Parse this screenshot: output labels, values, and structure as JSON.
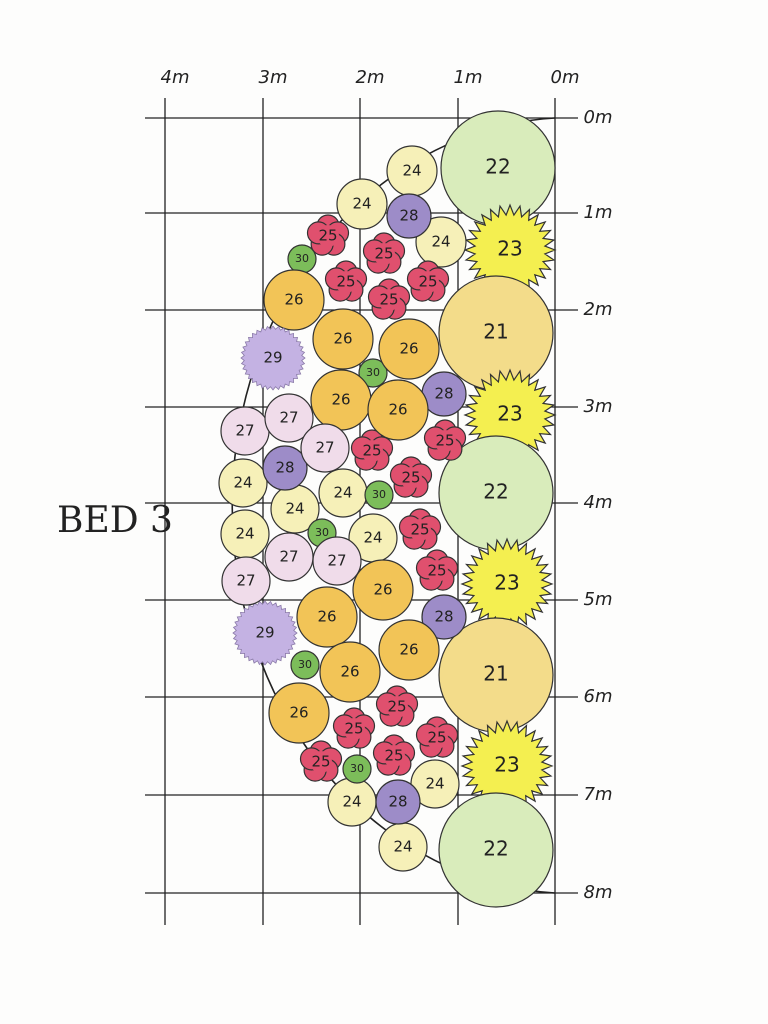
{
  "title": "BED 3",
  "top_scale": [
    "4m",
    "3m",
    "2m",
    "1m",
    "0m"
  ],
  "side_scale": [
    "0m",
    "1m",
    "2m",
    "3m",
    "4m",
    "5m",
    "6m",
    "7m",
    "8m"
  ],
  "plants": [
    {
      "label": "22",
      "color": "#d9ecbb"
    },
    {
      "label": "23",
      "color": "#f4ef50"
    },
    {
      "label": "21",
      "color": "#f3dc8a"
    },
    {
      "label": "23",
      "color": "#f4ef50"
    },
    {
      "label": "22",
      "color": "#d9ecbb"
    },
    {
      "label": "23",
      "color": "#f4ef50"
    },
    {
      "label": "21",
      "color": "#f3dc8a"
    },
    {
      "label": "23",
      "color": "#f4ef50"
    },
    {
      "label": "22",
      "color": "#d9ecbb"
    },
    {
      "label": "24",
      "color": "#f6f0b8"
    },
    {
      "label": "24",
      "color": "#f6f0b8"
    },
    {
      "label": "24",
      "color": "#f6f0b8"
    },
    {
      "label": "24",
      "color": "#f6f0b8"
    },
    {
      "label": "24",
      "color": "#f6f0b8"
    },
    {
      "label": "24",
      "color": "#f6f0b8"
    },
    {
      "label": "24",
      "color": "#f6f0b8"
    },
    {
      "label": "24",
      "color": "#f6f0b8"
    },
    {
      "label": "24",
      "color": "#f6f0b8"
    },
    {
      "label": "24",
      "color": "#f6f0b8"
    },
    {
      "label": "24",
      "color": "#f6f0b8"
    },
    {
      "label": "28",
      "color": "#9d8cc8"
    },
    {
      "label": "28",
      "color": "#9d8cc8"
    },
    {
      "label": "28",
      "color": "#9d8cc8"
    },
    {
      "label": "28",
      "color": "#9d8cc8"
    },
    {
      "label": "28",
      "color": "#9d8cc8"
    },
    {
      "label": "25",
      "color": "#e0506e"
    },
    {
      "label": "25",
      "color": "#e0506e"
    },
    {
      "label": "25",
      "color": "#e0506e"
    },
    {
      "label": "25",
      "color": "#e0506e"
    },
    {
      "label": "25",
      "color": "#e0506e"
    },
    {
      "label": "25",
      "color": "#e0506e"
    },
    {
      "label": "25",
      "color": "#e0506e"
    },
    {
      "label": "25",
      "color": "#e0506e"
    },
    {
      "label": "25",
      "color": "#e0506e"
    },
    {
      "label": "25",
      "color": "#e0506e"
    },
    {
      "label": "25",
      "color": "#e0506e"
    },
    {
      "label": "25",
      "color": "#e0506e"
    },
    {
      "label": "25",
      "color": "#e0506e"
    },
    {
      "label": "25",
      "color": "#e0506e"
    },
    {
      "label": "25",
      "color": "#e0506e"
    },
    {
      "label": "30",
      "color": "#7cbd5a"
    },
    {
      "label": "30",
      "color": "#7cbd5a"
    },
    {
      "label": "30",
      "color": "#7cbd5a"
    },
    {
      "label": "30",
      "color": "#7cbd5a"
    },
    {
      "label": "30",
      "color": "#7cbd5a"
    },
    {
      "label": "30",
      "color": "#7cbd5a"
    },
    {
      "label": "26",
      "color": "#f2c457"
    },
    {
      "label": "26",
      "color": "#f2c457"
    },
    {
      "label": "26",
      "color": "#f2c457"
    },
    {
      "label": "26",
      "color": "#f2c457"
    },
    {
      "label": "26",
      "color": "#f2c457"
    },
    {
      "label": "26",
      "color": "#f2c457"
    },
    {
      "label": "26",
      "color": "#f2c457"
    },
    {
      "label": "26",
      "color": "#f2c457"
    },
    {
      "label": "26",
      "color": "#f2c457"
    },
    {
      "label": "26",
      "color": "#f2c457"
    },
    {
      "label": "29",
      "color": "#c4b2e3"
    },
    {
      "label": "29",
      "color": "#c4b2e3"
    },
    {
      "label": "27",
      "color": "#f0dcea"
    },
    {
      "label": "27",
      "color": "#f0dcea"
    },
    {
      "label": "27",
      "color": "#f0dcea"
    },
    {
      "label": "27",
      "color": "#f0dcea"
    },
    {
      "label": "27",
      "color": "#f0dcea"
    },
    {
      "label": "27",
      "color": "#f0dcea"
    }
  ]
}
